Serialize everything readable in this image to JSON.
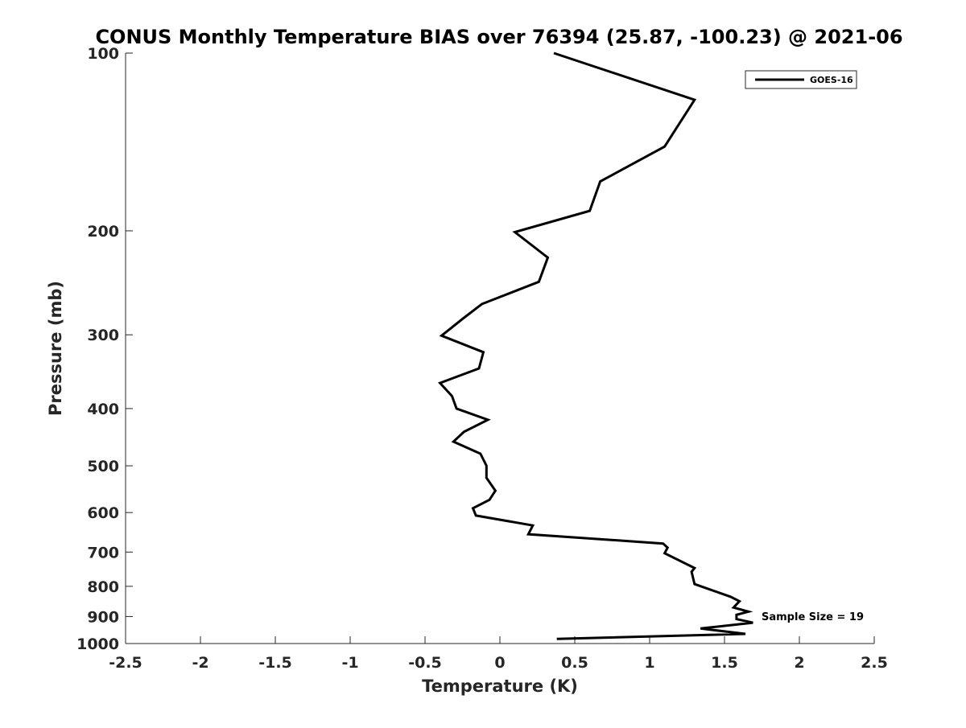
{
  "chart_data": {
    "type": "line",
    "title": "CONUS Monthly Temperature BIAS over 76394 (25.87, -100.23) @ 2021-06",
    "xlabel": "Temperature (K)",
    "ylabel": "Pressure (mb)",
    "xlim": [
      -2.5,
      2.5
    ],
    "ylim": [
      100,
      1000
    ],
    "y_scale": "log",
    "y_reversed": true,
    "grid": false,
    "x_ticks": [
      -2.5,
      -2,
      -1.5,
      -1,
      -0.5,
      0,
      0.5,
      1,
      1.5,
      2,
      2.5
    ],
    "x_tick_labels": [
      "-2.5",
      "-2",
      "-1.5",
      "-1",
      "-0.5",
      "0",
      "0.5",
      "1",
      "1.5",
      "2",
      "2.5"
    ],
    "y_ticks": [
      100,
      200,
      300,
      400,
      500,
      600,
      700,
      800,
      900,
      1000
    ],
    "y_tick_labels": [
      "100",
      "200",
      "300",
      "400",
      "500",
      "600",
      "700",
      "800",
      "900",
      "1000"
    ],
    "legend": {
      "placement": "top-right",
      "entries": [
        "GOES-16"
      ]
    },
    "annotation": "Sample Size = 19",
    "series": [
      {
        "name": "GOES-16",
        "color": "#000000",
        "points": [
          [
            0.36,
            100
          ],
          [
            1.3,
            120
          ],
          [
            1.1,
            144
          ],
          [
            0.67,
            165
          ],
          [
            0.6,
            185
          ],
          [
            0.1,
            201
          ],
          [
            0.32,
            222
          ],
          [
            0.26,
            244
          ],
          [
            -0.12,
            266
          ],
          [
            -0.25,
            282
          ],
          [
            -0.39,
            301
          ],
          [
            -0.11,
            321
          ],
          [
            -0.14,
            342
          ],
          [
            -0.4,
            362
          ],
          [
            -0.32,
            381
          ],
          [
            -0.29,
            400
          ],
          [
            -0.08,
            418
          ],
          [
            -0.24,
            438
          ],
          [
            -0.31,
            455
          ],
          [
            -0.13,
            477
          ],
          [
            -0.09,
            500
          ],
          [
            -0.09,
            524
          ],
          [
            -0.03,
            551
          ],
          [
            -0.07,
            571
          ],
          [
            -0.18,
            590
          ],
          [
            -0.16,
            607
          ],
          [
            0.22,
            631
          ],
          [
            0.19,
            653
          ],
          [
            1.09,
            677
          ],
          [
            1.12,
            688
          ],
          [
            1.1,
            703
          ],
          [
            1.3,
            745
          ],
          [
            1.28,
            756
          ],
          [
            1.3,
            793
          ],
          [
            1.54,
            833
          ],
          [
            1.6,
            848
          ],
          [
            1.56,
            869
          ],
          [
            1.66,
            883
          ],
          [
            1.58,
            894
          ],
          [
            1.58,
            909
          ],
          [
            1.69,
            922
          ],
          [
            1.34,
            943
          ],
          [
            1.64,
            963
          ],
          [
            0.38,
            982
          ]
        ]
      }
    ]
  }
}
